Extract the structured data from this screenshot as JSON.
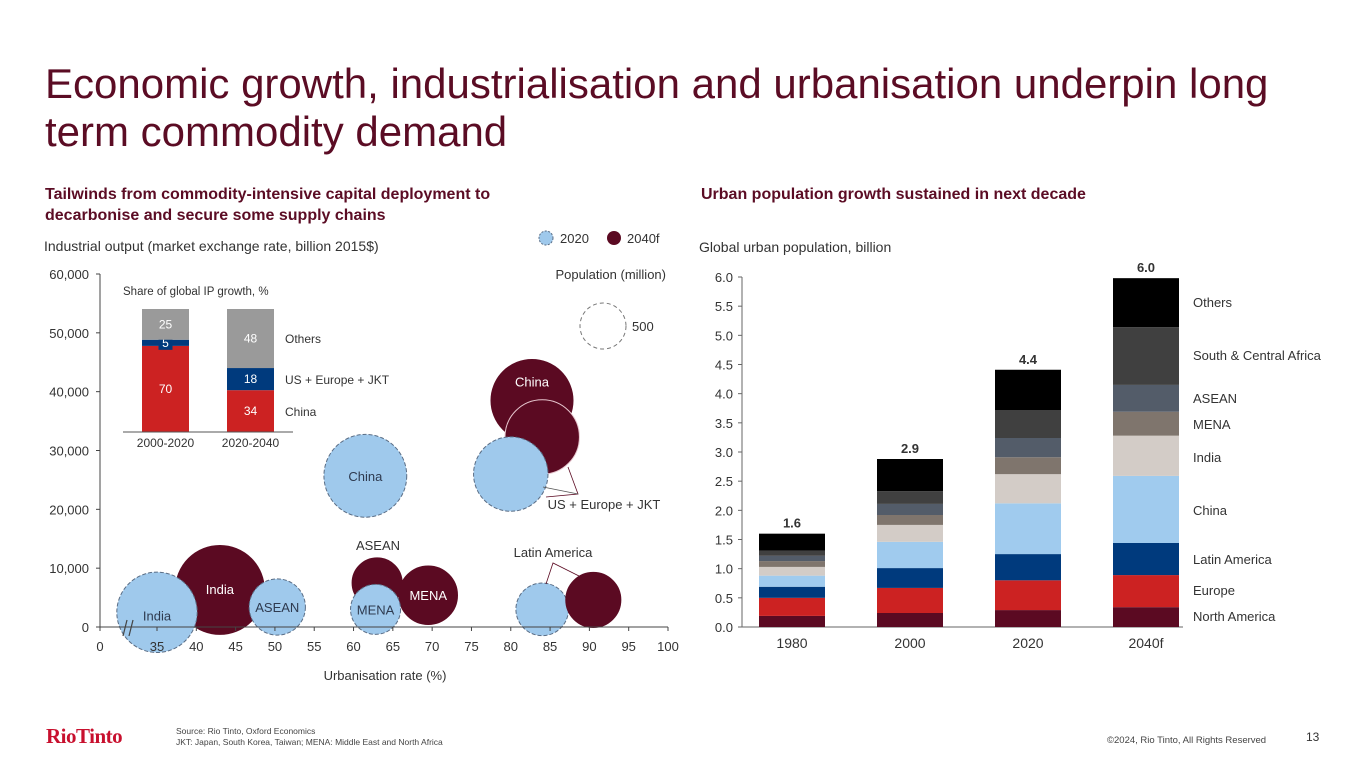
{
  "page": {
    "title": "Economic growth, industrialisation and urbanisation underpin long term commodity demand",
    "left_subhead": "Tailwinds from commodity-intensive capital deployment to decarbonise and secure some supply chains",
    "left_caption": "Industrial output (market exchange rate, billion 2015$)",
    "right_subhead": "Urban population growth sustained in next decade",
    "right_caption": "Global urban population, billion",
    "logo": "RioTinto",
    "source_line1": "Source: Rio Tinto, Oxford Economics",
    "source_line2": "JKT: Japan, South Korea, Taiwan; MENA: Middle East and North Africa",
    "copyright": "©2024, Rio Tinto, All Rights Reserved",
    "page_number": "13"
  },
  "colors": {
    "brand": "#5b0c24",
    "y2020": "#9fc9ec",
    "y2040": "#5b0a22",
    "china_red": "#cc2222",
    "navy": "#003a7d",
    "grey": "#9a9a9a"
  },
  "chart_data": [
    {
      "type": "scatter",
      "subtype": "bubble",
      "title": "Tailwinds from commodity-intensive capital deployment to decarbonise and secure some supply chains",
      "xlabel": "Urbanisation rate (%)",
      "ylabel": "Industrial output (market exchange rate, billion 2015$)",
      "xlim": [
        0,
        100
      ],
      "x_axis_break": "0 to 30",
      "x_ticks": [
        "0",
        "35",
        "40",
        "45",
        "50",
        "55",
        "60",
        "65",
        "70",
        "75",
        "80",
        "85",
        "90",
        "95",
        "100"
      ],
      "ylim": [
        0,
        60000
      ],
      "y_ticks": [
        "0",
        "10,000",
        "20,000",
        "30,000",
        "40,000",
        "50,000",
        "60,000"
      ],
      "grid": false,
      "legend": {
        "placement": "top-right",
        "entries": [
          "2020",
          "2040f"
        ]
      },
      "size_legend": {
        "title": "Population (million)",
        "reference_value": 500
      },
      "series": [
        {
          "name": "2020",
          "points": [
            {
              "label": "India",
              "x": 35,
              "y": 2500,
              "population": 490,
              "show_label": true
            },
            {
              "label": "ASEAN",
              "x": 50.3,
              "y": 3400,
              "population": 240,
              "show_label": true
            },
            {
              "label": "MENA",
              "x": 62.8,
              "y": 3000,
              "population": 190,
              "show_label": true
            },
            {
              "label": "China",
              "x": 61.5,
              "y": 25700,
              "population": 520,
              "show_label": true
            },
            {
              "label": "US + Europe + JKT",
              "x": 80,
              "y": 26000,
              "population": 420,
              "show_label": false
            },
            {
              "label": "Latin America",
              "x": 84,
              "y": 3000,
              "population": 210,
              "show_label": false
            }
          ]
        },
        {
          "name": "2040f",
          "points": [
            {
              "label": "India",
              "x": 43,
              "y": 6300,
              "population": 600,
              "show_label": true
            },
            {
              "label": "ASEAN",
              "x": 63,
              "y": 7500,
              "population": 190,
              "show_label": false
            },
            {
              "label": "MENA",
              "x": 69.5,
              "y": 5400,
              "population": 260,
              "show_label": true
            },
            {
              "label": "China",
              "x": 82.7,
              "y": 38500,
              "population": 510,
              "show_label": true
            },
            {
              "label": "US + Europe + JKT",
              "x": 84,
              "y": 32300,
              "population": 420,
              "show_label": false
            },
            {
              "label": "Latin America",
              "x": 90.5,
              "y": 4600,
              "population": 230,
              "show_label": false
            }
          ]
        }
      ],
      "annotations": [
        {
          "text": "ASEAN",
          "x": 63,
          "y": 14000
        },
        {
          "text": "US + Europe + JKT",
          "x": 90,
          "y": 21000
        },
        {
          "text": "Latin America",
          "x": 86,
          "y": 13000
        }
      ]
    },
    {
      "type": "bar",
      "subtype": "stacked",
      "title": "Share of global IP growth, %",
      "categories": [
        "2000-2020",
        "2020-2040"
      ],
      "series": [
        {
          "name": "China",
          "values": [
            70,
            34
          ],
          "color": "#cc2222"
        },
        {
          "name": "US + Europe + JKT",
          "values": [
            5,
            18
          ],
          "color": "#003a7d"
        },
        {
          "name": "Others",
          "values": [
            25,
            48
          ],
          "color": "#9a9a9a"
        }
      ],
      "ylim": [
        0,
        100
      ]
    },
    {
      "type": "bar",
      "subtype": "stacked",
      "title": "Urban population growth sustained in next decade",
      "ylabel": "Global urban population, billion",
      "categories": [
        "1980",
        "2000",
        "2020",
        "2040f"
      ],
      "totals": [
        "1.6",
        "2.9",
        "4.4",
        "6.0"
      ],
      "ylim": [
        0,
        6
      ],
      "y_ticks": [
        "0.0",
        "0.5",
        "1.0",
        "1.5",
        "2.0",
        "2.5",
        "3.0",
        "3.5",
        "4.0",
        "4.5",
        "5.0",
        "5.5",
        "6.0"
      ],
      "grid": false,
      "legend": {
        "placement": "right"
      },
      "series": [
        {
          "name": "North America",
          "values": [
            0.19,
            0.24,
            0.29,
            0.34
          ],
          "color": "#5b0a22"
        },
        {
          "name": "Europe",
          "values": [
            0.31,
            0.43,
            0.51,
            0.55
          ],
          "color": "#cc2222"
        },
        {
          "name": "Latin America",
          "values": [
            0.19,
            0.34,
            0.45,
            0.55
          ],
          "color": "#003a7d"
        },
        {
          "name": "China",
          "values": [
            0.19,
            0.45,
            0.87,
            1.15
          ],
          "color": "#a0cbee"
        },
        {
          "name": "India",
          "values": [
            0.15,
            0.29,
            0.5,
            0.69
          ],
          "color": "#d3ccc7"
        },
        {
          "name": "MENA",
          "values": [
            0.1,
            0.17,
            0.29,
            0.41
          ],
          "color": "#7f756d"
        },
        {
          "name": "ASEAN",
          "values": [
            0.09,
            0.19,
            0.33,
            0.46
          ],
          "color": "#535c69"
        },
        {
          "name": "South & Central Africa",
          "values": [
            0.09,
            0.22,
            0.48,
            0.99
          ],
          "color": "#404040"
        },
        {
          "name": "Others",
          "values": [
            0.29,
            0.55,
            0.69,
            0.84
          ],
          "color": "#000000"
        }
      ]
    }
  ]
}
